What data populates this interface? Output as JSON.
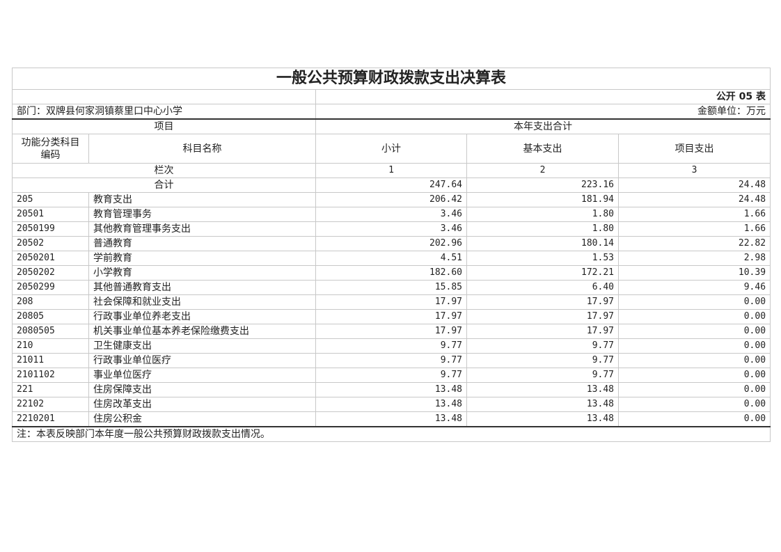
{
  "title": "一般公共预算财政拨款支出决算表",
  "form_no": "公开 05 表",
  "department": "部门：双牌县何家洞镇蔡里口中心小学",
  "unit": "金额单位：万元",
  "headers": {
    "item": "项目",
    "total_group": "本年支出合计",
    "code": "功能分类科目编码",
    "name": "科目名称",
    "subtotal": "小计",
    "basic": "基本支出",
    "project": "项目支出",
    "column_label": "栏次",
    "col1": "1",
    "col2": "2",
    "col3": "3",
    "sum_label": "合计"
  },
  "sum": {
    "subtotal": "247.64",
    "basic": "223.16",
    "project": "24.48"
  },
  "rows": [
    {
      "code": "205",
      "name": "教育支出",
      "subtotal": "206.42",
      "basic": "181.94",
      "project": "24.48"
    },
    {
      "code": "20501",
      "name": "教育管理事务",
      "subtotal": "3.46",
      "basic": "1.80",
      "project": "1.66"
    },
    {
      "code": "2050199",
      "name": "其他教育管理事务支出",
      "subtotal": "3.46",
      "basic": "1.80",
      "project": "1.66"
    },
    {
      "code": "20502",
      "name": "普通教育",
      "subtotal": "202.96",
      "basic": "180.14",
      "project": "22.82"
    },
    {
      "code": "2050201",
      "name": "学前教育",
      "subtotal": "4.51",
      "basic": "1.53",
      "project": "2.98"
    },
    {
      "code": "2050202",
      "name": "小学教育",
      "subtotal": "182.60",
      "basic": "172.21",
      "project": "10.39"
    },
    {
      "code": "2050299",
      "name": "其他普通教育支出",
      "subtotal": "15.85",
      "basic": "6.40",
      "project": "9.46"
    },
    {
      "code": "208",
      "name": "社会保障和就业支出",
      "subtotal": "17.97",
      "basic": "17.97",
      "project": "0.00"
    },
    {
      "code": "20805",
      "name": "行政事业单位养老支出",
      "subtotal": "17.97",
      "basic": "17.97",
      "project": "0.00"
    },
    {
      "code": "2080505",
      "name": "机关事业单位基本养老保险缴费支出",
      "subtotal": "17.97",
      "basic": "17.97",
      "project": "0.00"
    },
    {
      "code": "210",
      "name": "卫生健康支出",
      "subtotal": "9.77",
      "basic": "9.77",
      "project": "0.00"
    },
    {
      "code": "21011",
      "name": "行政事业单位医疗",
      "subtotal": "9.77",
      "basic": "9.77",
      "project": "0.00"
    },
    {
      "code": "2101102",
      "name": "事业单位医疗",
      "subtotal": "9.77",
      "basic": "9.77",
      "project": "0.00"
    },
    {
      "code": "221",
      "name": "住房保障支出",
      "subtotal": "13.48",
      "basic": "13.48",
      "project": "0.00"
    },
    {
      "code": "22102",
      "name": "住房改革支出",
      "subtotal": "13.48",
      "basic": "13.48",
      "project": "0.00"
    },
    {
      "code": "2210201",
      "name": "住房公积金",
      "subtotal": "13.48",
      "basic": "13.48",
      "project": "0.00"
    }
  ],
  "note": "注：本表反映部门本年度一般公共预算财政拨款支出情况。"
}
